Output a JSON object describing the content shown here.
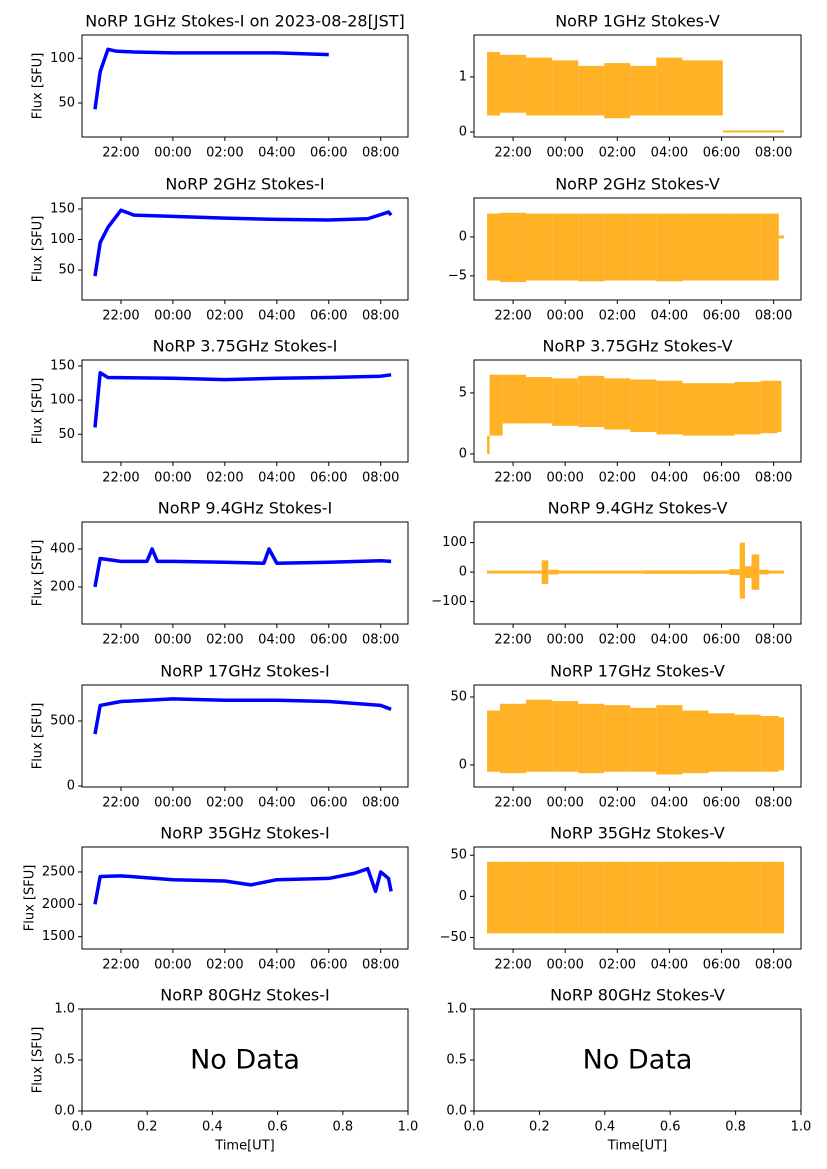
{
  "chart_data": [
    {
      "type": "line",
      "title": "NoRP 1GHz Stokes-I on 2023-08-28[JST]",
      "ylabel": "Flux [SFU]",
      "color": "#0000ff",
      "xlim": [
        20.5,
        33.05
      ],
      "ylim": [
        12,
        126
      ],
      "xticks": [
        {
          "value": 22,
          "label": "22:00"
        },
        {
          "value": 24,
          "label": "00:00"
        },
        {
          "value": 26,
          "label": "02:00"
        },
        {
          "value": 28,
          "label": "04:00"
        },
        {
          "value": 30,
          "label": "06:00"
        },
        {
          "value": 32,
          "label": "08:00"
        }
      ],
      "yticks": [
        50,
        100
      ],
      "x": [
        21.0,
        21.2,
        21.5,
        21.8,
        22.5,
        24,
        26,
        28,
        29,
        30
      ],
      "values": [
        43,
        85,
        110,
        108,
        107,
        106,
        106,
        106,
        105,
        104
      ]
    },
    {
      "type": "band",
      "title": "NoRP 1GHz Stokes-V",
      "color": "#ffa500",
      "xlim": [
        20.5,
        33.05
      ],
      "ylim": [
        -0.09,
        1.76
      ],
      "xticks": [
        {
          "value": 22,
          "label": "22:00"
        },
        {
          "value": 24,
          "label": "00:00"
        },
        {
          "value": 26,
          "label": "02:00"
        },
        {
          "value": 28,
          "label": "04:00"
        },
        {
          "value": 30,
          "label": "06:00"
        },
        {
          "value": 32,
          "label": "08:00"
        }
      ],
      "yticks": [
        0,
        1
      ],
      "x": [
        21,
        22,
        23,
        24,
        25,
        26,
        27,
        28,
        29,
        30,
        30.1,
        31,
        32,
        32.4
      ],
      "lower": [
        0.3,
        0.35,
        0.3,
        0.3,
        0.3,
        0.25,
        0.3,
        0.3,
        0.3,
        0.3,
        0,
        0,
        0,
        0
      ],
      "upper": [
        1.45,
        1.4,
        1.35,
        1.3,
        1.2,
        1.25,
        1.2,
        1.35,
        1.3,
        1.3,
        0.02,
        0.02,
        0.02,
        0.02
      ]
    },
    {
      "type": "line",
      "title": "NoRP 2GHz Stokes-I",
      "ylabel": "Flux [SFU]",
      "color": "#0000ff",
      "xlim": [
        20.5,
        33.05
      ],
      "ylim": [
        1,
        168
      ],
      "xticks": [
        {
          "value": 22,
          "label": "22:00"
        },
        {
          "value": 24,
          "label": "00:00"
        },
        {
          "value": 26,
          "label": "02:00"
        },
        {
          "value": 28,
          "label": "04:00"
        },
        {
          "value": 30,
          "label": "06:00"
        },
        {
          "value": 32,
          "label": "08:00"
        }
      ],
      "yticks": [
        50,
        100,
        150
      ],
      "x": [
        21.0,
        21.2,
        21.5,
        22,
        22.5,
        24,
        26,
        28,
        30,
        31.5,
        32.3,
        32.4
      ],
      "values": [
        40,
        95,
        120,
        148,
        140,
        138,
        135,
        133,
        132,
        134,
        145,
        140
      ]
    },
    {
      "type": "band",
      "title": "NoRP 2GHz Stokes-V",
      "color": "#ffa500",
      "xlim": [
        20.5,
        33.05
      ],
      "ylim": [
        -8.1,
        5.0
      ],
      "xticks": [
        {
          "value": 22,
          "label": "22:00"
        },
        {
          "value": 24,
          "label": "00:00"
        },
        {
          "value": 26,
          "label": "02:00"
        },
        {
          "value": 28,
          "label": "04:00"
        },
        {
          "value": 30,
          "label": "06:00"
        },
        {
          "value": 32,
          "label": "08:00"
        }
      ],
      "yticks": [
        {
          "value": -5,
          "label": "−5"
        },
        0
      ],
      "x": [
        21,
        22,
        23,
        24,
        25,
        26,
        27,
        28,
        29,
        30,
        31,
        32,
        32.4
      ],
      "lower": [
        -5.6,
        -5.8,
        -5.6,
        -5.6,
        -5.7,
        -5.6,
        -5.6,
        -5.7,
        -5.6,
        -5.6,
        -5.6,
        -5.6,
        -0.2
      ],
      "upper": [
        3.0,
        3.1,
        3.0,
        3.0,
        3.0,
        3.0,
        3.0,
        3.0,
        3.0,
        3.0,
        3.0,
        3.0,
        0.2
      ]
    },
    {
      "type": "line",
      "title": "NoRP 3.75GHz Stokes-I",
      "ylabel": "Flux [SFU]",
      "color": "#0000ff",
      "xlim": [
        20.5,
        33.05
      ],
      "ylim": [
        9.4,
        158.7
      ],
      "xticks": [
        {
          "value": 22,
          "label": "22:00"
        },
        {
          "value": 24,
          "label": "00:00"
        },
        {
          "value": 26,
          "label": "02:00"
        },
        {
          "value": 28,
          "label": "04:00"
        },
        {
          "value": 30,
          "label": "06:00"
        },
        {
          "value": 32,
          "label": "08:00"
        }
      ],
      "yticks": [
        50,
        100,
        150
      ],
      "x": [
        21.0,
        21.2,
        21.5,
        24,
        26,
        28,
        30,
        32,
        32.4
      ],
      "values": [
        60,
        140,
        133,
        132,
        130,
        132,
        133,
        135,
        137
      ]
    },
    {
      "type": "band",
      "title": "NoRP 3.75GHz Stokes-V",
      "color": "#ffa500",
      "xlim": [
        20.5,
        33.05
      ],
      "ylim": [
        -0.66,
        7.7
      ],
      "xticks": [
        {
          "value": 22,
          "label": "22:00"
        },
        {
          "value": 24,
          "label": "00:00"
        },
        {
          "value": 26,
          "label": "02:00"
        },
        {
          "value": 28,
          "label": "04:00"
        },
        {
          "value": 30,
          "label": "06:00"
        },
        {
          "value": 32,
          "label": "08:00"
        }
      ],
      "yticks": [
        0,
        5
      ],
      "x": [
        21,
        21.2,
        22,
        23,
        24,
        25,
        26,
        27,
        28,
        29,
        30,
        31,
        32,
        32.3
      ],
      "lower": [
        0,
        1.5,
        2.5,
        2.5,
        2.3,
        2.2,
        2,
        1.8,
        1.6,
        1.5,
        1.5,
        1.6,
        1.7,
        1.8
      ],
      "upper": [
        1.5,
        6.5,
        6.5,
        6.3,
        6.2,
        6.4,
        6.2,
        6.1,
        6.0,
        5.8,
        5.8,
        5.9,
        6.0,
        6.0
      ]
    },
    {
      "type": "line",
      "title": "NoRP 9.4GHz Stokes-I",
      "ylabel": "Flux [SFU]",
      "color": "#0000ff",
      "xlim": [
        20.5,
        33.05
      ],
      "ylim": [
        5.3,
        542
      ],
      "xticks": [
        {
          "value": 22,
          "label": "22:00"
        },
        {
          "value": 24,
          "label": "00:00"
        },
        {
          "value": 26,
          "label": "02:00"
        },
        {
          "value": 28,
          "label": "04:00"
        },
        {
          "value": 30,
          "label": "06:00"
        },
        {
          "value": 32,
          "label": "08:00"
        }
      ],
      "yticks": [
        200,
        400
      ],
      "x": [
        21.0,
        21.2,
        22,
        23,
        23.2,
        23.4,
        24,
        26,
        27.5,
        27.7,
        28,
        30,
        32,
        32.4
      ],
      "values": [
        200,
        350,
        335,
        335,
        400,
        335,
        335,
        330,
        325,
        400,
        325,
        330,
        338,
        335
      ]
    },
    {
      "type": "band",
      "title": "NoRP 9.4GHz Stokes-V",
      "color": "#ffa500",
      "xlim": [
        20.5,
        33.05
      ],
      "ylim": [
        -176,
        170
      ],
      "xticks": [
        {
          "value": 22,
          "label": "22:00"
        },
        {
          "value": 24,
          "label": "00:00"
        },
        {
          "value": 26,
          "label": "02:00"
        },
        {
          "value": 28,
          "label": "04:00"
        },
        {
          "value": 30,
          "label": "06:00"
        },
        {
          "value": 32,
          "label": "08:00"
        }
      ],
      "yticks": [
        {
          "value": -100,
          "label": "−100"
        },
        0,
        100
      ],
      "x": [
        21,
        22,
        23,
        23.2,
        23.5,
        24,
        26,
        28,
        30,
        30.6,
        30.8,
        31,
        31.3,
        31.6,
        32,
        32.4
      ],
      "lower": [
        -5,
        -5,
        -5,
        -40,
        -8,
        -5,
        -5,
        -6,
        -6,
        -10,
        -90,
        -20,
        -60,
        -8,
        -5,
        -5
      ],
      "upper": [
        5,
        5,
        5,
        40,
        8,
        5,
        5,
        6,
        6,
        10,
        100,
        20,
        60,
        8,
        5,
        5
      ]
    },
    {
      "type": "line",
      "title": "NoRP 17GHz Stokes-I",
      "ylabel": "Flux [SFU]",
      "color": "#0000ff",
      "xlim": [
        20.5,
        33.05
      ],
      "ylim": [
        -7.7,
        777
      ],
      "xticks": [
        {
          "value": 22,
          "label": "22:00"
        },
        {
          "value": 24,
          "label": "00:00"
        },
        {
          "value": 26,
          "label": "02:00"
        },
        {
          "value": 28,
          "label": "04:00"
        },
        {
          "value": 30,
          "label": "06:00"
        },
        {
          "value": 32,
          "label": "08:00"
        }
      ],
      "yticks": [
        0,
        500
      ],
      "x": [
        21.0,
        21.2,
        22,
        24,
        26,
        28,
        30,
        32,
        32.4
      ],
      "values": [
        400,
        620,
        650,
        670,
        660,
        660,
        650,
        620,
        590
      ]
    },
    {
      "type": "band",
      "title": "NoRP 17GHz Stokes-V",
      "color": "#ffa500",
      "xlim": [
        20.5,
        33.05
      ],
      "ylim": [
        -16.2,
        58.8
      ],
      "xticks": [
        {
          "value": 22,
          "label": "22:00"
        },
        {
          "value": 24,
          "label": "00:00"
        },
        {
          "value": 26,
          "label": "02:00"
        },
        {
          "value": 28,
          "label": "04:00"
        },
        {
          "value": 30,
          "label": "06:00"
        },
        {
          "value": 32,
          "label": "08:00"
        }
      ],
      "yticks": [
        0,
        50
      ],
      "x": [
        21,
        22,
        23,
        24,
        25,
        26,
        27,
        28,
        29,
        30,
        31,
        32,
        32.4
      ],
      "lower": [
        -5,
        -6,
        -5,
        -5,
        -6,
        -5,
        -5,
        -7,
        -6,
        -5,
        -5,
        -5,
        -4
      ],
      "upper": [
        40,
        45,
        48,
        47,
        45,
        44,
        42,
        44,
        40,
        38,
        37,
        36,
        35
      ]
    },
    {
      "type": "line",
      "title": "NoRP 35GHz Stokes-I",
      "ylabel": "Flux [SFU]",
      "color": "#0000ff",
      "xlim": [
        20.5,
        33.05
      ],
      "ylim": [
        1310,
        2885
      ],
      "xticks": [
        {
          "value": 22,
          "label": "22:00"
        },
        {
          "value": 24,
          "label": "00:00"
        },
        {
          "value": 26,
          "label": "02:00"
        },
        {
          "value": 28,
          "label": "04:00"
        },
        {
          "value": 30,
          "label": "06:00"
        },
        {
          "value": 32,
          "label": "08:00"
        }
      ],
      "yticks": [
        1500,
        2000,
        2500
      ],
      "x": [
        21.0,
        21.2,
        22,
        24,
        26,
        27,
        28,
        30,
        31,
        31.5,
        31.8,
        32,
        32.3,
        32.4
      ],
      "values": [
        2000,
        2430,
        2440,
        2380,
        2360,
        2300,
        2380,
        2400,
        2480,
        2550,
        2200,
        2500,
        2400,
        2200
      ]
    },
    {
      "type": "band",
      "title": "NoRP 35GHz Stokes-V",
      "color": "#ffa500",
      "xlim": [
        20.5,
        33.05
      ],
      "ylim": [
        -64,
        60
      ],
      "xticks": [
        {
          "value": 22,
          "label": "22:00"
        },
        {
          "value": 24,
          "label": "00:00"
        },
        {
          "value": 26,
          "label": "02:00"
        },
        {
          "value": 28,
          "label": "04:00"
        },
        {
          "value": 30,
          "label": "06:00"
        },
        {
          "value": 32,
          "label": "08:00"
        }
      ],
      "yticks": [
        {
          "value": -50,
          "label": "−50"
        },
        0,
        50
      ],
      "x": [
        21,
        22,
        23,
        24,
        25,
        26,
        27,
        28,
        29,
        30,
        31,
        32,
        32.4
      ],
      "lower": [
        -45,
        -45,
        -45,
        -45,
        -45,
        -45,
        -45,
        -45,
        -45,
        -45,
        -45,
        -45,
        -45
      ],
      "upper": [
        42,
        42,
        42,
        42,
        42,
        42,
        42,
        42,
        42,
        42,
        42,
        42,
        42
      ]
    },
    {
      "type": "empty",
      "title": "NoRP 80GHz Stokes-I",
      "ylabel": "Flux [SFU]",
      "xlabel": "Time[UT]",
      "annotation": "No Data",
      "xlim": [
        0,
        1
      ],
      "ylim": [
        0,
        1
      ],
      "xticks": [
        {
          "value": 0,
          "label": "0.0"
        },
        0.2,
        0.4,
        0.6,
        0.8,
        {
          "value": 1,
          "label": "1.0"
        }
      ],
      "yticks": [
        {
          "value": 0,
          "label": "0.0"
        },
        0.5,
        {
          "value": 1,
          "label": "1.0"
        }
      ]
    },
    {
      "type": "empty",
      "title": "NoRP 80GHz Stokes-V",
      "xlabel": "Time[UT]",
      "annotation": "No Data",
      "xlim": [
        0,
        1
      ],
      "ylim": [
        0,
        1
      ],
      "xticks": [
        {
          "value": 0,
          "label": "0.0"
        },
        0.2,
        0.4,
        0.6,
        0.8,
        {
          "value": 1,
          "label": "1.0"
        }
      ],
      "yticks": [
        {
          "value": 0,
          "label": "0.0"
        },
        0.5,
        {
          "value": 1,
          "label": "1.0"
        }
      ]
    }
  ]
}
